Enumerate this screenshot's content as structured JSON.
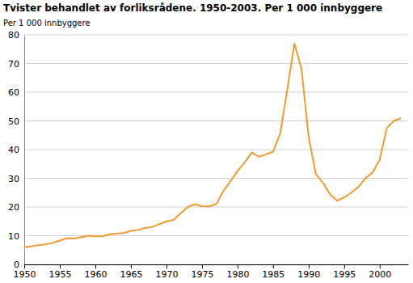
{
  "chart_data": {
    "type": "line",
    "title": "Tvister behandlet av forliksrådene. 1950-2003. Per 1 000 innbyggere",
    "ylabel": "Per 1 000 innbyggere",
    "x": [
      1950,
      1951,
      1952,
      1953,
      1954,
      1955,
      1956,
      1957,
      1958,
      1959,
      1960,
      1961,
      1962,
      1963,
      1964,
      1965,
      1966,
      1967,
      1968,
      1969,
      1970,
      1971,
      1972,
      1973,
      1974,
      1975,
      1976,
      1977,
      1978,
      1979,
      1980,
      1981,
      1982,
      1983,
      1984,
      1985,
      1986,
      1987,
      1988,
      1989,
      1990,
      1991,
      1992,
      1993,
      1994,
      1995,
      1996,
      1997,
      1998,
      1999,
      2000,
      2001,
      2002,
      2003
    ],
    "values": [
      6,
      6.3,
      6.7,
      7,
      7.5,
      8.3,
      9.1,
      9,
      9.5,
      10,
      9.8,
      9.8,
      10.5,
      10.7,
      11,
      11.7,
      12,
      12.7,
      13,
      14,
      15,
      15.5,
      17.8,
      20,
      21,
      20.2,
      20.2,
      21,
      25.5,
      29,
      32.5,
      35.5,
      39,
      37.5,
      38.3,
      39.3,
      45.5,
      61,
      77,
      68,
      44.5,
      31.5,
      28.5,
      24.5,
      22.2,
      23.3,
      25,
      27,
      30,
      32,
      36.5,
      47.5,
      50,
      51
    ],
    "color": "#f39a34",
    "xlim": [
      1950,
      2004
    ],
    "xticks": [
      1950,
      1955,
      1960,
      1965,
      1970,
      1975,
      1980,
      1985,
      1990,
      1995,
      2000
    ],
    "ylim": [
      0,
      80
    ],
    "yticks": [
      0,
      10,
      20,
      30,
      40,
      50,
      60,
      70,
      80
    ],
    "grid": true
  }
}
